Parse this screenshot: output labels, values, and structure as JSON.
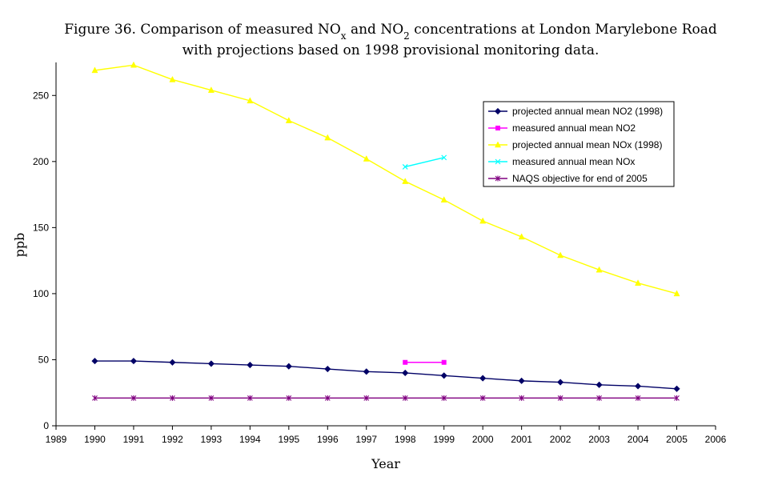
{
  "chart_data": {
    "type": "line",
    "title_parts": [
      {
        "text": "Figure 36. Comparison of measured NO",
        "sub": false
      },
      {
        "text": "x",
        "sub": true
      },
      {
        "text": " and NO",
        "sub": false
      },
      {
        "text": "2",
        "sub": true
      },
      {
        "text": " concentrations at London Marylebone Road",
        "sub": false
      }
    ],
    "subtitle": "with projections based on 1998 provisional monitoring data.",
    "xlabel": "Year",
    "ylabel": "ppb",
    "xlim": [
      1989,
      2006
    ],
    "ylim": [
      0,
      275
    ],
    "xticks": [
      1989,
      1990,
      1991,
      1992,
      1993,
      1994,
      1995,
      1996,
      1997,
      1998,
      1999,
      2000,
      2001,
      2002,
      2003,
      2004,
      2005,
      2006
    ],
    "yticks": [
      0,
      50,
      100,
      150,
      200,
      250
    ],
    "grid": false,
    "legend_position": "top-right",
    "series": [
      {
        "name": "projected annual mean NO2 (1998)",
        "color": "#000066",
        "marker": "diamond",
        "x": [
          1990,
          1991,
          1992,
          1993,
          1994,
          1995,
          1996,
          1997,
          1998,
          1999,
          2000,
          2001,
          2002,
          2003,
          2004,
          2005
        ],
        "y": [
          49,
          49,
          48,
          47,
          46,
          45,
          43,
          41,
          40,
          38,
          36,
          34,
          33,
          31,
          30,
          28
        ]
      },
      {
        "name": "measured annual mean NO2",
        "color": "#FF00FF",
        "marker": "square",
        "x": [
          1998,
          1999
        ],
        "y": [
          48,
          48
        ]
      },
      {
        "name": "projected annual mean NOx (1998)",
        "color": "#FFFF00",
        "marker": "triangle",
        "x": [
          1990,
          1991,
          1992,
          1993,
          1994,
          1995,
          1996,
          1997,
          1998,
          1999,
          2000,
          2001,
          2002,
          2003,
          2004,
          2005
        ],
        "y": [
          269,
          273,
          262,
          254,
          246,
          231,
          218,
          202,
          185,
          171,
          155,
          143,
          129,
          118,
          108,
          100
        ]
      },
      {
        "name": "measured annual mean NOx",
        "color": "#00FFFF",
        "marker": "x",
        "x": [
          1998,
          1999
        ],
        "y": [
          196,
          203
        ]
      },
      {
        "name": "NAQS objective for end of 2005",
        "color": "#800080",
        "marker": "star",
        "x": [
          1990,
          1991,
          1992,
          1993,
          1994,
          1995,
          1996,
          1997,
          1998,
          1999,
          2000,
          2001,
          2002,
          2003,
          2004,
          2005
        ],
        "y": [
          21,
          21,
          21,
          21,
          21,
          21,
          21,
          21,
          21,
          21,
          21,
          21,
          21,
          21,
          21,
          21
        ]
      }
    ]
  }
}
